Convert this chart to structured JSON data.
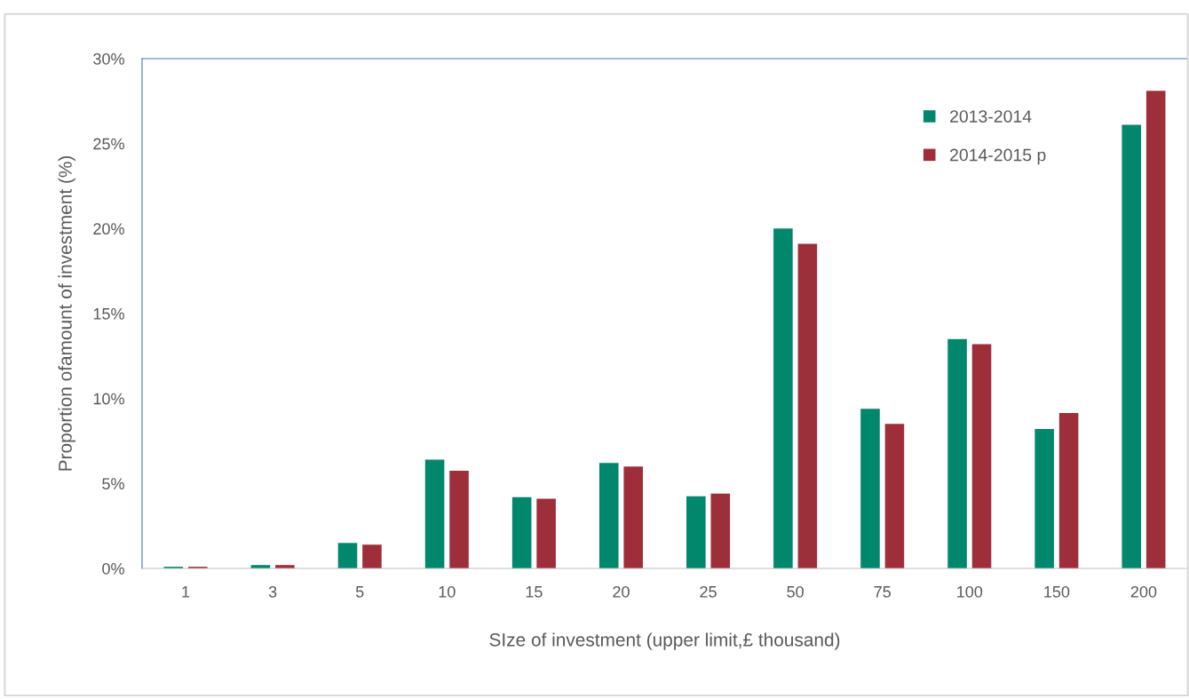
{
  "chart_data": {
    "type": "bar",
    "xlabel": "SIze of investment (upper limit,£ thousand)",
    "ylabel": "Proportion ofamount of investment (%)",
    "categories": [
      "1",
      "3",
      "5",
      "10",
      "15",
      "20",
      "25",
      "50",
      "75",
      "100",
      "150",
      "200"
    ],
    "series": [
      {
        "name": "2013-2014",
        "color": "#00876c",
        "values": [
          0.1,
          0.2,
          1.5,
          6.4,
          4.2,
          6.2,
          4.25,
          20.0,
          9.4,
          13.5,
          8.2,
          26.1
        ]
      },
      {
        "name": "2014-2015 p",
        "color": "#9e2f3a",
        "values": [
          0.1,
          0.2,
          1.4,
          5.75,
          4.1,
          6.0,
          4.4,
          19.1,
          8.5,
          13.2,
          9.15,
          28.1
        ]
      }
    ],
    "ylim": [
      0,
      30
    ],
    "yticks": [
      {
        "value": 0,
        "label": "0%"
      },
      {
        "value": 5,
        "label": "5%"
      },
      {
        "value": 10,
        "label": "10%"
      },
      {
        "value": 15,
        "label": "15%"
      },
      {
        "value": 20,
        "label": "20%"
      },
      {
        "value": 25,
        "label": "25%"
      },
      {
        "value": 30,
        "label": "30%"
      }
    ],
    "grid": false,
    "legend": "top right"
  }
}
